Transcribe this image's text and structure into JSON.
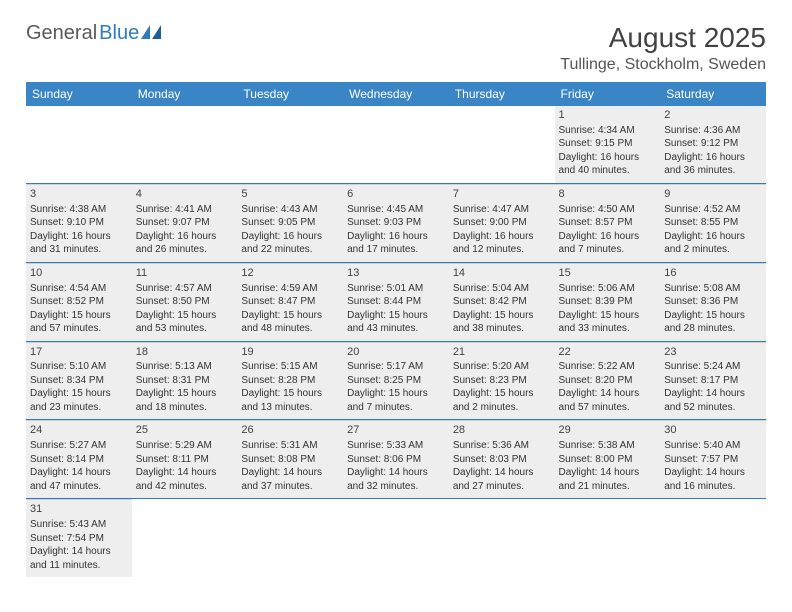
{
  "brand": {
    "part1": "General",
    "part2": "Blue"
  },
  "title": "August 2025",
  "location": "Tullinge, Stockholm, Sweden",
  "colors": {
    "header_bg": "#3a85c6",
    "accent": "#2f7bbf",
    "shade": "#eeeeee",
    "text": "#333333"
  },
  "dayHeaders": [
    "Sunday",
    "Monday",
    "Tuesday",
    "Wednesday",
    "Thursday",
    "Friday",
    "Saturday"
  ],
  "weeks": [
    [
      null,
      null,
      null,
      null,
      null,
      {
        "n": "1",
        "sr": "Sunrise: 4:34 AM",
        "ss": "Sunset: 9:15 PM",
        "d1": "Daylight: 16 hours",
        "d2": "and 40 minutes."
      },
      {
        "n": "2",
        "sr": "Sunrise: 4:36 AM",
        "ss": "Sunset: 9:12 PM",
        "d1": "Daylight: 16 hours",
        "d2": "and 36 minutes."
      }
    ],
    [
      {
        "n": "3",
        "sr": "Sunrise: 4:38 AM",
        "ss": "Sunset: 9:10 PM",
        "d1": "Daylight: 16 hours",
        "d2": "and 31 minutes."
      },
      {
        "n": "4",
        "sr": "Sunrise: 4:41 AM",
        "ss": "Sunset: 9:07 PM",
        "d1": "Daylight: 16 hours",
        "d2": "and 26 minutes."
      },
      {
        "n": "5",
        "sr": "Sunrise: 4:43 AM",
        "ss": "Sunset: 9:05 PM",
        "d1": "Daylight: 16 hours",
        "d2": "and 22 minutes."
      },
      {
        "n": "6",
        "sr": "Sunrise: 4:45 AM",
        "ss": "Sunset: 9:03 PM",
        "d1": "Daylight: 16 hours",
        "d2": "and 17 minutes."
      },
      {
        "n": "7",
        "sr": "Sunrise: 4:47 AM",
        "ss": "Sunset: 9:00 PM",
        "d1": "Daylight: 16 hours",
        "d2": "and 12 minutes."
      },
      {
        "n": "8",
        "sr": "Sunrise: 4:50 AM",
        "ss": "Sunset: 8:57 PM",
        "d1": "Daylight: 16 hours",
        "d2": "and 7 minutes."
      },
      {
        "n": "9",
        "sr": "Sunrise: 4:52 AM",
        "ss": "Sunset: 8:55 PM",
        "d1": "Daylight: 16 hours",
        "d2": "and 2 minutes."
      }
    ],
    [
      {
        "n": "10",
        "sr": "Sunrise: 4:54 AM",
        "ss": "Sunset: 8:52 PM",
        "d1": "Daylight: 15 hours",
        "d2": "and 57 minutes."
      },
      {
        "n": "11",
        "sr": "Sunrise: 4:57 AM",
        "ss": "Sunset: 8:50 PM",
        "d1": "Daylight: 15 hours",
        "d2": "and 53 minutes."
      },
      {
        "n": "12",
        "sr": "Sunrise: 4:59 AM",
        "ss": "Sunset: 8:47 PM",
        "d1": "Daylight: 15 hours",
        "d2": "and 48 minutes."
      },
      {
        "n": "13",
        "sr": "Sunrise: 5:01 AM",
        "ss": "Sunset: 8:44 PM",
        "d1": "Daylight: 15 hours",
        "d2": "and 43 minutes."
      },
      {
        "n": "14",
        "sr": "Sunrise: 5:04 AM",
        "ss": "Sunset: 8:42 PM",
        "d1": "Daylight: 15 hours",
        "d2": "and 38 minutes."
      },
      {
        "n": "15",
        "sr": "Sunrise: 5:06 AM",
        "ss": "Sunset: 8:39 PM",
        "d1": "Daylight: 15 hours",
        "d2": "and 33 minutes."
      },
      {
        "n": "16",
        "sr": "Sunrise: 5:08 AM",
        "ss": "Sunset: 8:36 PM",
        "d1": "Daylight: 15 hours",
        "d2": "and 28 minutes."
      }
    ],
    [
      {
        "n": "17",
        "sr": "Sunrise: 5:10 AM",
        "ss": "Sunset: 8:34 PM",
        "d1": "Daylight: 15 hours",
        "d2": "and 23 minutes."
      },
      {
        "n": "18",
        "sr": "Sunrise: 5:13 AM",
        "ss": "Sunset: 8:31 PM",
        "d1": "Daylight: 15 hours",
        "d2": "and 18 minutes."
      },
      {
        "n": "19",
        "sr": "Sunrise: 5:15 AM",
        "ss": "Sunset: 8:28 PM",
        "d1": "Daylight: 15 hours",
        "d2": "and 13 minutes."
      },
      {
        "n": "20",
        "sr": "Sunrise: 5:17 AM",
        "ss": "Sunset: 8:25 PM",
        "d1": "Daylight: 15 hours",
        "d2": "and 7 minutes."
      },
      {
        "n": "21",
        "sr": "Sunrise: 5:20 AM",
        "ss": "Sunset: 8:23 PM",
        "d1": "Daylight: 15 hours",
        "d2": "and 2 minutes."
      },
      {
        "n": "22",
        "sr": "Sunrise: 5:22 AM",
        "ss": "Sunset: 8:20 PM",
        "d1": "Daylight: 14 hours",
        "d2": "and 57 minutes."
      },
      {
        "n": "23",
        "sr": "Sunrise: 5:24 AM",
        "ss": "Sunset: 8:17 PM",
        "d1": "Daylight: 14 hours",
        "d2": "and 52 minutes."
      }
    ],
    [
      {
        "n": "24",
        "sr": "Sunrise: 5:27 AM",
        "ss": "Sunset: 8:14 PM",
        "d1": "Daylight: 14 hours",
        "d2": "and 47 minutes."
      },
      {
        "n": "25",
        "sr": "Sunrise: 5:29 AM",
        "ss": "Sunset: 8:11 PM",
        "d1": "Daylight: 14 hours",
        "d2": "and 42 minutes."
      },
      {
        "n": "26",
        "sr": "Sunrise: 5:31 AM",
        "ss": "Sunset: 8:08 PM",
        "d1": "Daylight: 14 hours",
        "d2": "and 37 minutes."
      },
      {
        "n": "27",
        "sr": "Sunrise: 5:33 AM",
        "ss": "Sunset: 8:06 PM",
        "d1": "Daylight: 14 hours",
        "d2": "and 32 minutes."
      },
      {
        "n": "28",
        "sr": "Sunrise: 5:36 AM",
        "ss": "Sunset: 8:03 PM",
        "d1": "Daylight: 14 hours",
        "d2": "and 27 minutes."
      },
      {
        "n": "29",
        "sr": "Sunrise: 5:38 AM",
        "ss": "Sunset: 8:00 PM",
        "d1": "Daylight: 14 hours",
        "d2": "and 21 minutes."
      },
      {
        "n": "30",
        "sr": "Sunrise: 5:40 AM",
        "ss": "Sunset: 7:57 PM",
        "d1": "Daylight: 14 hours",
        "d2": "and 16 minutes."
      }
    ],
    [
      {
        "n": "31",
        "sr": "Sunrise: 5:43 AM",
        "ss": "Sunset: 7:54 PM",
        "d1": "Daylight: 14 hours",
        "d2": "and 11 minutes."
      },
      null,
      null,
      null,
      null,
      null,
      null
    ]
  ]
}
